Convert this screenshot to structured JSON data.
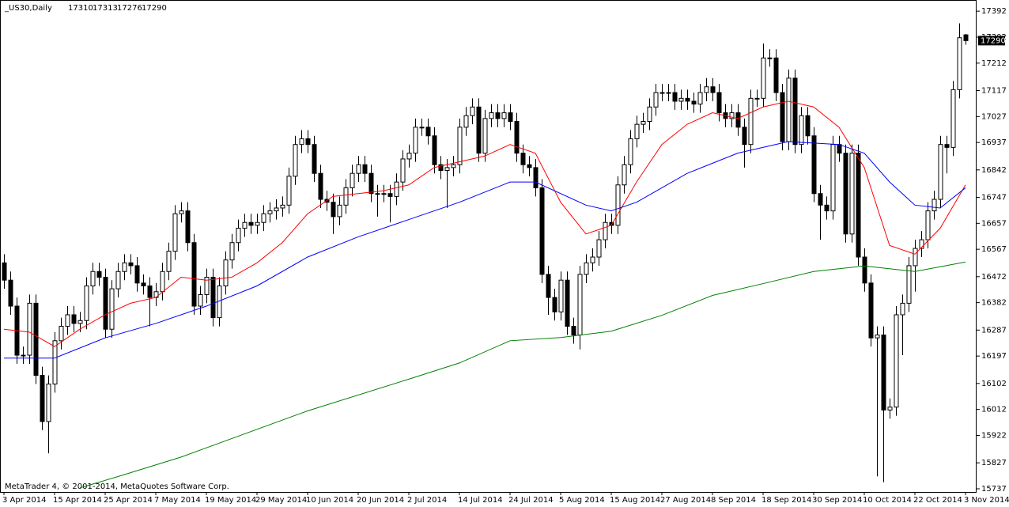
{
  "chart_data": {
    "type": "candlestick",
    "title": "_US30,Daily",
    "watermark": "MetaTrader 4, © 2001-2014, MetaQuotes Software Corp.",
    "categories": [
      "3 Apr 2014",
      null,
      null,
      null,
      null,
      null,
      null,
      null,
      "15 Apr 2014",
      null,
      null,
      null,
      null,
      null,
      null,
      null,
      "25 Apr 2014",
      null,
      null,
      null,
      null,
      null,
      null,
      null,
      "7 May 2014",
      null,
      null,
      null,
      null,
      null,
      null,
      null,
      "19 May 2014",
      null,
      null,
      null,
      null,
      null,
      null,
      null,
      "29 May 2014",
      null,
      null,
      null,
      null,
      null,
      null,
      null,
      "10 Jun 2014",
      null,
      null,
      null,
      null,
      null,
      null,
      null,
      "20 Jun 2014",
      null,
      null,
      null,
      null,
      null,
      null,
      null,
      "2 Jul 2014",
      null,
      null,
      null,
      null,
      null,
      null,
      null,
      "14 Jul 2014",
      null,
      null,
      null,
      null,
      null,
      null,
      null,
      "24 Jul 2014",
      null,
      null,
      null,
      null,
      null,
      null,
      null,
      "5 Aug 2014",
      null,
      null,
      null,
      null,
      null,
      null,
      null,
      "15 Aug 2014",
      null,
      null,
      null,
      null,
      null,
      null,
      null,
      "27 Aug 2014",
      null,
      null,
      null,
      null,
      null,
      null,
      null,
      "8 Sep 2014",
      null,
      null,
      null,
      null,
      null,
      null,
      null,
      "18 Sep 2014",
      null,
      null,
      null,
      null,
      null,
      null,
      null,
      "30 Sep 2014",
      null,
      null,
      null,
      null,
      null,
      null,
      null,
      "10 Oct 2014",
      null,
      null,
      null,
      null,
      null,
      null,
      null,
      "22 Oct 2014",
      null,
      null,
      null,
      null,
      null,
      null,
      null,
      "3 Nov 2014"
    ],
    "open": [
      16520,
      16460,
      16370,
      16200,
      16200,
      16380,
      16130,
      15970,
      16100,
      16250,
      16300,
      16340,
      16310,
      16320,
      16440,
      16490,
      16470,
      16290,
      16430,
      16490,
      16520,
      16510,
      16450,
      16440,
      16400,
      16420,
      16490,
      16560,
      16690,
      16700,
      16590,
      16370,
      16410,
      16470,
      16330,
      16440,
      16530,
      16590,
      16640,
      16660,
      16650,
      16660,
      16690,
      16700,
      16710,
      16720,
      16820,
      16930,
      16950,
      16930,
      16830,
      16740,
      16730,
      16680,
      16720,
      16780,
      16830,
      16860,
      16830,
      16760,
      16760,
      16760,
      16750,
      16800,
      16880,
      16900,
      16990,
      16990,
      16960,
      16860,
      16840,
      16850,
      16860,
      16990,
      17030,
      17060,
      16900,
      17020,
      17040,
      17020,
      17040,
      17010,
      16900,
      16860,
      16850,
      16780,
      16480,
      16400,
      16350,
      16460,
      16300,
      16270,
      16480,
      16520,
      16540,
      16600,
      16660,
      16650,
      16790,
      16860,
      16950,
      17000,
      17010,
      17060,
      17110,
      17110,
      17110,
      17080,
      17090,
      17080,
      17070,
      17110,
      17130,
      17110,
      17040,
      17020,
      17040,
      16990,
      16930,
      17090,
      17090,
      17230,
      17230,
      17110,
      16940,
      17160,
      16930,
      17030,
      16960,
      16760,
      16720,
      16700,
      16930,
      16900,
      16620,
      16900,
      16540,
      16450,
      16260,
      16270,
      16010,
      16020,
      16340,
      16380,
      16510,
      16570,
      16600,
      16700,
      16740,
      16930,
      16920,
      17120,
      17310
    ],
    "high": [
      16550,
      16490,
      16400,
      16230,
      16410,
      16410,
      16160,
      16130,
      16280,
      16330,
      16370,
      16370,
      16350,
      16470,
      16520,
      16520,
      16500,
      16460,
      16520,
      16550,
      16550,
      16540,
      16480,
      16470,
      16450,
      16520,
      16590,
      16720,
      16730,
      16730,
      16620,
      16440,
      16500,
      16500,
      16470,
      16560,
      16620,
      16670,
      16690,
      16690,
      16690,
      16720,
      16730,
      16740,
      16750,
      16850,
      16960,
      16980,
      16980,
      16960,
      16860,
      16770,
      16760,
      16750,
      16810,
      16860,
      16890,
      16890,
      16860,
      16790,
      16790,
      16790,
      16830,
      16910,
      16930,
      17020,
      17020,
      17020,
      16990,
      16890,
      16880,
      16890,
      17020,
      17060,
      17090,
      17090,
      17050,
      17070,
      17070,
      17070,
      17070,
      17040,
      16930,
      16890,
      16880,
      16810,
      16510,
      16430,
      16490,
      16490,
      16330,
      16510,
      16550,
      16570,
      16630,
      16690,
      16690,
      16820,
      16890,
      16980,
      17030,
      17040,
      17090,
      17140,
      17140,
      17140,
      17140,
      17120,
      17120,
      17110,
      17140,
      17160,
      17160,
      17140,
      17070,
      17070,
      17070,
      17020,
      17120,
      17120,
      17280,
      17260,
      17260,
      17140,
      17190,
      17190,
      17060,
      17060,
      16990,
      16790,
      16750,
      16960,
      16960,
      16930,
      16930,
      16930,
      16570,
      16480,
      16300,
      16300,
      16050,
      16370,
      16410,
      16540,
      16600,
      16630,
      16730,
      16770,
      16960,
      16960,
      17150,
      17350,
      17313
    ],
    "low": [
      16430,
      16340,
      16170,
      16170,
      16170,
      16100,
      15940,
      15860,
      16070,
      16220,
      16270,
      16280,
      16280,
      16290,
      16410,
      16440,
      16260,
      16260,
      16400,
      16460,
      16480,
      16420,
      16410,
      16300,
      16370,
      16390,
      16460,
      16530,
      16660,
      16560,
      16340,
      16340,
      16380,
      16300,
      16300,
      16410,
      16500,
      16560,
      16610,
      16620,
      16620,
      16630,
      16660,
      16670,
      16680,
      16690,
      16790,
      16900,
      16900,
      16800,
      16710,
      16700,
      16620,
      16650,
      16690,
      16750,
      16800,
      16800,
      16730,
      16680,
      16730,
      16660,
      16720,
      16770,
      16850,
      16870,
      16960,
      16930,
      16830,
      16810,
      16710,
      16820,
      16830,
      16960,
      17000,
      16870,
      16870,
      16990,
      16990,
      16990,
      16980,
      16870,
      16830,
      16820,
      16750,
      16450,
      16340,
      16320,
      16320,
      16270,
      16240,
      16220,
      16450,
      16490,
      16510,
      16570,
      16620,
      16620,
      16760,
      16830,
      16920,
      16970,
      16980,
      17030,
      17080,
      17080,
      17050,
      17050,
      17050,
      17040,
      17040,
      17080,
      17080,
      17010,
      16990,
      16990,
      16960,
      16850,
      16900,
      17060,
      17060,
      17200,
      17080,
      16910,
      16910,
      16900,
      16900,
      16930,
      16730,
      16600,
      16670,
      16670,
      16870,
      16590,
      16590,
      16510,
      16420,
      16230,
      15780,
      15760,
      15980,
      15990,
      16200,
      16350,
      16420,
      16540,
      16570,
      16670,
      16710,
      16830,
      16890,
      17090,
      17276
    ],
    "close": [
      16460,
      16370,
      16200,
      16200,
      16380,
      16130,
      15970,
      16100,
      16250,
      16300,
      16340,
      16310,
      16320,
      16440,
      16490,
      16470,
      16290,
      16430,
      16490,
      16520,
      16510,
      16450,
      16440,
      16400,
      16420,
      16490,
      16560,
      16690,
      16700,
      16590,
      16370,
      16410,
      16470,
      16330,
      16440,
      16530,
      16590,
      16640,
      16660,
      16650,
      16660,
      16690,
      16700,
      16710,
      16720,
      16820,
      16930,
      16950,
      16930,
      16830,
      16740,
      16730,
      16680,
      16720,
      16780,
      16830,
      16860,
      16830,
      16760,
      16760,
      16760,
      16750,
      16800,
      16880,
      16900,
      16990,
      16990,
      16960,
      16860,
      16840,
      16850,
      16860,
      16990,
      17030,
      17060,
      16900,
      17020,
      17040,
      17020,
      17040,
      17010,
      16900,
      16860,
      16850,
      16780,
      16480,
      16400,
      16350,
      16460,
      16300,
      16270,
      16480,
      16520,
      16540,
      16600,
      16660,
      16650,
      16790,
      16860,
      16950,
      17000,
      17010,
      17060,
      17110,
      17110,
      17110,
      17080,
      17090,
      17080,
      17070,
      17110,
      17130,
      17110,
      17040,
      17020,
      17040,
      16990,
      16930,
      17090,
      17090,
      17230,
      17230,
      17110,
      16940,
      17160,
      16930,
      17030,
      16960,
      16760,
      16720,
      16700,
      16930,
      16900,
      16620,
      16900,
      16540,
      16450,
      16260,
      16270,
      16010,
      16020,
      16340,
      16380,
      16510,
      16570,
      16600,
      16700,
      16740,
      16930,
      16920,
      17120,
      17300,
      17290
    ],
    "series": [
      {
        "color": "#ff0000",
        "x": [
          0,
          4,
          8,
          12,
          16,
          20,
          24,
          28,
          32,
          36,
          40,
          44,
          48,
          52,
          56,
          60,
          64,
          68,
          72,
          76,
          80,
          84,
          88,
          92,
          96,
          100,
          104,
          108,
          112,
          116,
          120,
          124,
          128,
          132,
          136,
          140,
          144,
          148,
          152
        ],
        "values": [
          16290,
          16280,
          16230,
          16290,
          16340,
          16380,
          16400,
          16470,
          16460,
          16470,
          16520,
          16590,
          16690,
          16750,
          16760,
          16770,
          16790,
          16850,
          16870,
          16890,
          16930,
          16900,
          16730,
          16620,
          16650,
          16800,
          16930,
          17000,
          17040,
          17020,
          17060,
          17080,
          17060,
          16990,
          16850,
          16580,
          16550,
          16640,
          16790
        ]
      },
      {
        "color": "#0000ff",
        "x": [
          0,
          8,
          16,
          24,
          32,
          40,
          48,
          56,
          64,
          72,
          80,
          84,
          92,
          96,
          100,
          108,
          116,
          124,
          132,
          136,
          140,
          144,
          148,
          152
        ],
        "values": [
          16190,
          16190,
          16260,
          16310,
          16370,
          16440,
          16540,
          16610,
          16670,
          16730,
          16800,
          16800,
          16720,
          16700,
          16730,
          16830,
          16900,
          16940,
          16930,
          16900,
          16800,
          16720,
          16710,
          16780
        ]
      },
      {
        "color": "#008000",
        "x": [
          12,
          19,
          28,
          48,
          64,
          72,
          80,
          88,
          96,
          104,
          112,
          120,
          128,
          136,
          144,
          152
        ],
        "values": [
          15740,
          15786,
          15847,
          16007,
          16117,
          16173,
          16250,
          16261,
          16283,
          16338,
          16407,
          16448,
          16490,
          16509,
          16490,
          16523
        ]
      }
    ],
    "ylim": [
      15726,
      17428
    ],
    "yticks": [
      17392,
      17302,
      17212,
      17117,
      17027,
      16937,
      16842,
      16747,
      16657,
      16567,
      16472,
      16382,
      16287,
      16197,
      16102,
      16012,
      15922,
      15827,
      15737
    ],
    "bull_color": "#ffffff",
    "bear_color": "#000000"
  }
}
